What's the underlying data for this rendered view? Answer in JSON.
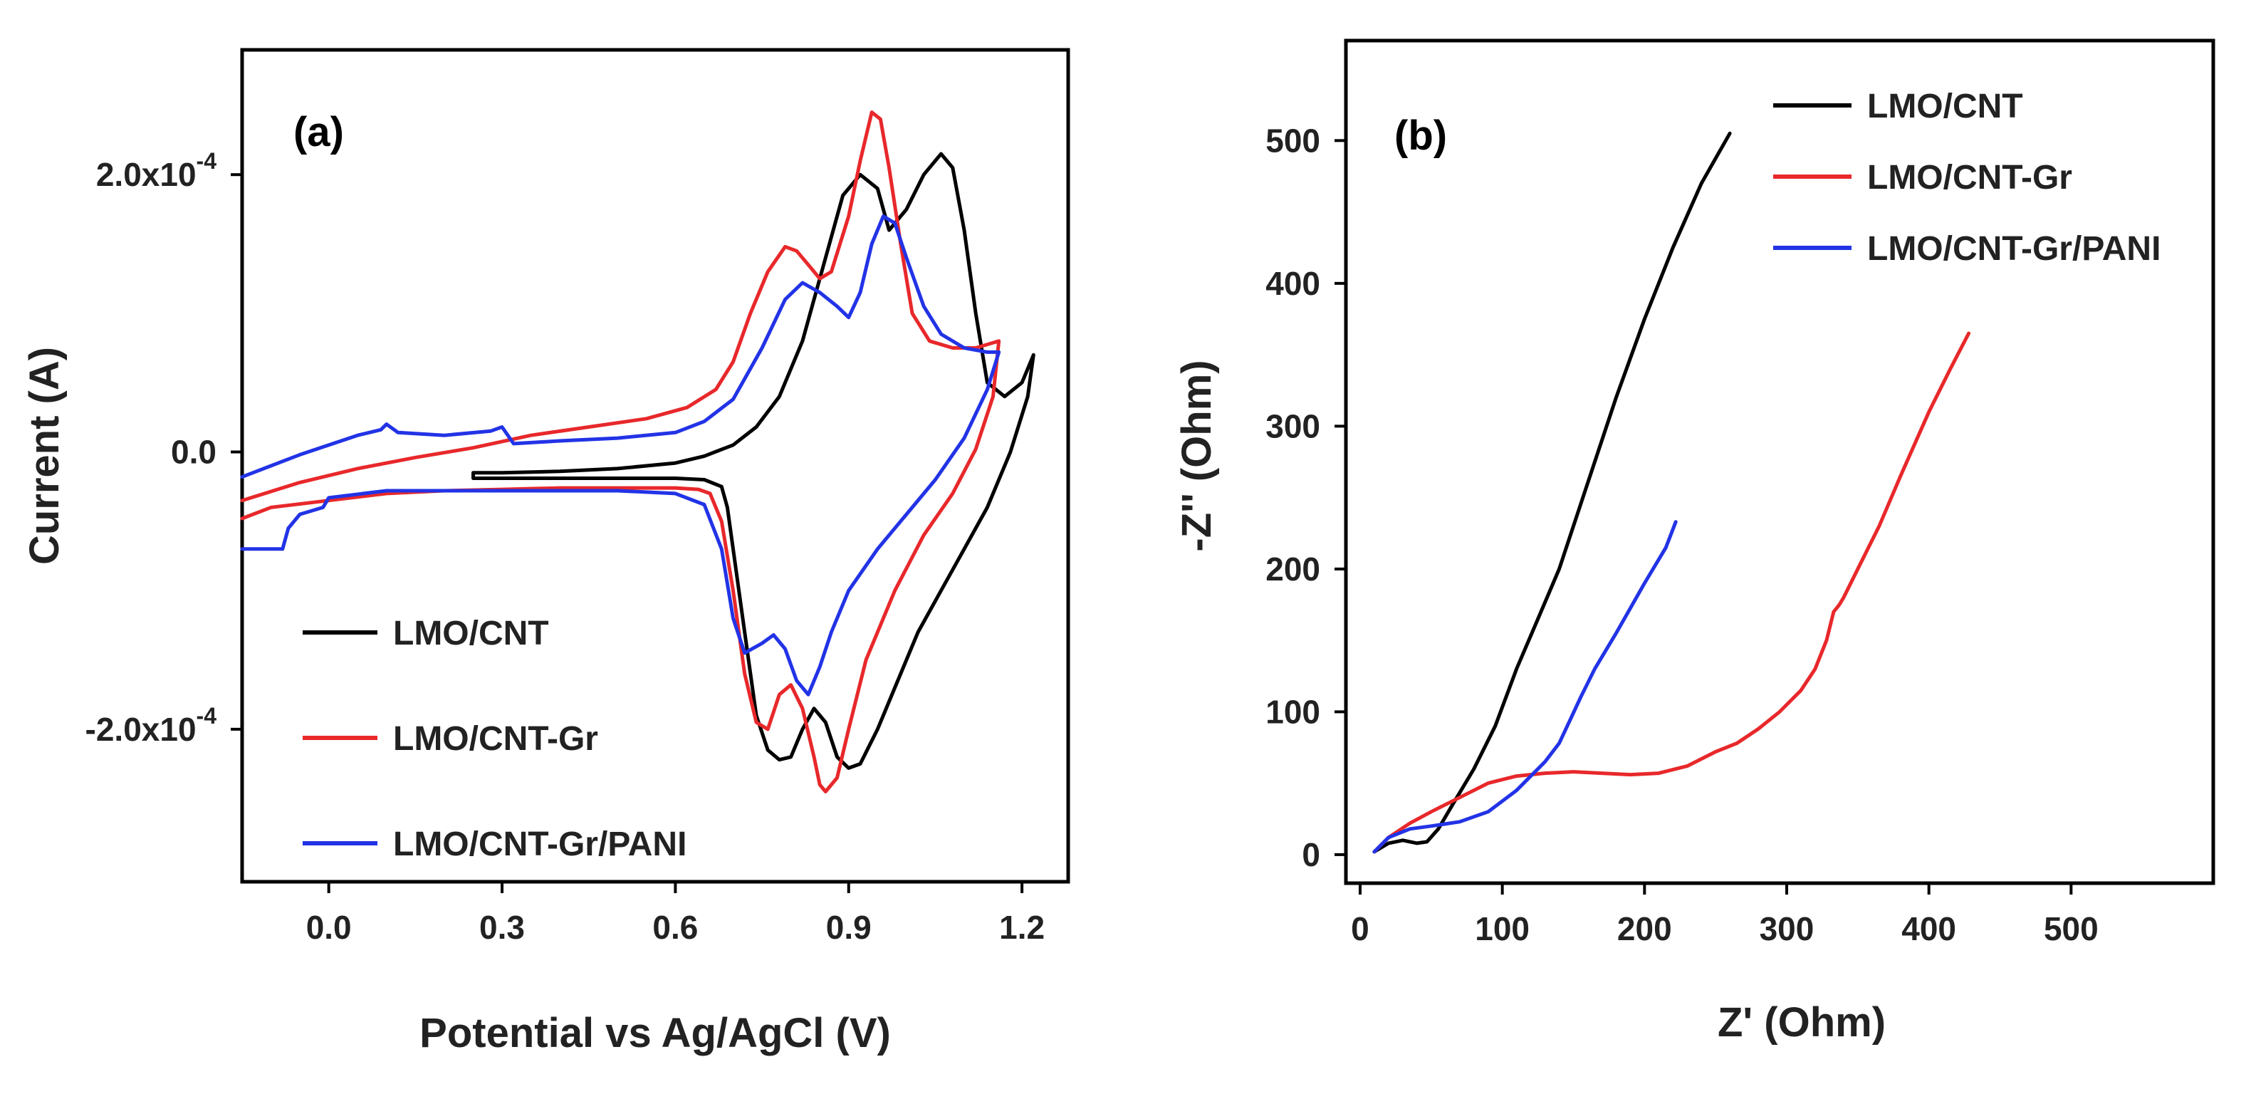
{
  "chart_data": [
    {
      "type": "line",
      "panel_label": "(a)",
      "xlabel": "Potential vs Ag/AgCl (V)",
      "ylabel": "Current (A)",
      "xlim": [
        -0.15,
        1.28
      ],
      "ylim": [
        -0.00031,
        0.00029
      ],
      "xticks": [
        0.0,
        0.3,
        0.6,
        0.9,
        1.2
      ],
      "xtick_labels": [
        "0.0",
        "0.3",
        "0.6",
        "0.9",
        "1.2"
      ],
      "yticks": [
        0.0002,
        0.0,
        -0.0002
      ],
      "ytick_labels": [
        {
          "mantissa": "2.0x10",
          "exponent": "-4"
        },
        {
          "mantissa": "0.0",
          "exponent": ""
        },
        {
          "mantissa": "-2.0x10",
          "exponent": "-4"
        }
      ],
      "legend_position": "lower-left",
      "series": [
        {
          "name": "LMO/CNT",
          "color": "#000000",
          "x": [
            0.25,
            0.3,
            0.4,
            0.5,
            0.6,
            0.65,
            0.7,
            0.74,
            0.78,
            0.82,
            0.86,
            0.89,
            0.92,
            0.95,
            0.97,
            1.0,
            1.03,
            1.06,
            1.08,
            1.1,
            1.12,
            1.14,
            1.17,
            1.2,
            1.22,
            1.21,
            1.18,
            1.14,
            1.1,
            1.06,
            1.02,
            0.98,
            0.95,
            0.92,
            0.9,
            0.88,
            0.86,
            0.84,
            0.82,
            0.8,
            0.78,
            0.76,
            0.74,
            0.72,
            0.7,
            0.69,
            0.68,
            0.65,
            0.6,
            0.5,
            0.4,
            0.3,
            0.25,
            0.25
          ],
          "y": [
            -1.5e-05,
            -1.5e-05,
            -1.4e-05,
            -1.2e-05,
            -8e-06,
            -3e-06,
            5e-06,
            1.8e-05,
            4e-05,
            8e-05,
            0.00014,
            0.000185,
            0.0002,
            0.00019,
            0.00016,
            0.000175,
            0.0002,
            0.000215,
            0.000205,
            0.00016,
            0.0001,
            5e-05,
            4e-05,
            5e-05,
            7e-05,
            4e-05,
            0.0,
            -4e-05,
            -7e-05,
            -0.0001,
            -0.00013,
            -0.00017,
            -0.0002,
            -0.000225,
            -0.000228,
            -0.00022,
            -0.000195,
            -0.000185,
            -0.0002,
            -0.00022,
            -0.000222,
            -0.000215,
            -0.00019,
            -0.00013,
            -7e-05,
            -4e-05,
            -2.5e-05,
            -2e-05,
            -1.9e-05,
            -1.9e-05,
            -1.9e-05,
            -1.9e-05,
            -1.9e-05,
            -1.5e-05
          ]
        },
        {
          "name": "LMO/CNT-Gr",
          "color": "#e8282b",
          "x": [
            -0.15,
            -0.05,
            0.05,
            0.15,
            0.25,
            0.35,
            0.45,
            0.55,
            0.62,
            0.67,
            0.7,
            0.73,
            0.76,
            0.79,
            0.81,
            0.83,
            0.85,
            0.87,
            0.9,
            0.92,
            0.94,
            0.955,
            0.97,
            0.99,
            1.01,
            1.04,
            1.08,
            1.12,
            1.16,
            1.15,
            1.12,
            1.08,
            1.03,
            0.98,
            0.93,
            0.9,
            0.88,
            0.86,
            0.85,
            0.84,
            0.82,
            0.8,
            0.78,
            0.76,
            0.74,
            0.72,
            0.7,
            0.68,
            0.66,
            0.64,
            0.6,
            0.5,
            0.4,
            0.3,
            0.2,
            0.1,
            0.0,
            -0.1,
            -0.15
          ],
          "y": [
            -3.5e-05,
            -2.2e-05,
            -1.2e-05,
            -4e-06,
            3e-06,
            1.2e-05,
            1.8e-05,
            2.4e-05,
            3.2e-05,
            4.5e-05,
            6.5e-05,
            0.0001,
            0.00013,
            0.000148,
            0.000145,
            0.000135,
            0.000125,
            0.00013,
            0.00017,
            0.00021,
            0.000245,
            0.00024,
            0.000205,
            0.00015,
            0.0001,
            8e-05,
            7.5e-05,
            7.5e-05,
            8e-05,
            4e-05,
            2e-06,
            -3e-05,
            -6e-05,
            -0.0001,
            -0.00015,
            -0.0002,
            -0.000235,
            -0.000245,
            -0.00024,
            -0.00022,
            -0.000185,
            -0.000168,
            -0.000175,
            -0.0002,
            -0.000195,
            -0.00016,
            -0.0001,
            -5e-05,
            -3e-05,
            -2.7e-05,
            -2.6e-05,
            -2.6e-05,
            -2.6e-05,
            -2.7e-05,
            -2.8e-05,
            -3e-05,
            -3.5e-05,
            -4e-05,
            -4.8e-05
          ]
        },
        {
          "name": "LMO/CNT-Gr/PANI",
          "color": "#2233e6",
          "x": [
            -0.15,
            -0.05,
            0.05,
            0.09,
            0.1,
            0.12,
            0.2,
            0.28,
            0.3,
            0.32,
            0.4,
            0.5,
            0.6,
            0.65,
            0.7,
            0.75,
            0.79,
            0.82,
            0.85,
            0.88,
            0.9,
            0.92,
            0.94,
            0.96,
            0.98,
            1.0,
            1.03,
            1.06,
            1.1,
            1.14,
            1.16,
            1.14,
            1.1,
            1.05,
            1.0,
            0.95,
            0.9,
            0.87,
            0.85,
            0.83,
            0.81,
            0.79,
            0.77,
            0.75,
            0.72,
            0.7,
            0.68,
            0.65,
            0.6,
            0.5,
            0.4,
            0.3,
            0.2,
            0.1,
            0.0,
            -0.01,
            -0.05,
            -0.07,
            -0.08,
            -0.1,
            -0.15
          ],
          "y": [
            -1.8e-05,
            -2e-06,
            1.2e-05,
            1.6e-05,
            2e-05,
            1.4e-05,
            1.2e-05,
            1.5e-05,
            1.8e-05,
            6e-06,
            8e-06,
            1e-05,
            1.4e-05,
            2.2e-05,
            3.8e-05,
            7.5e-05,
            0.00011,
            0.000122,
            0.000115,
            0.000105,
            9.7e-05,
            0.000115,
            0.00015,
            0.00017,
            0.000165,
            0.00014,
            0.000105,
            8.5e-05,
            7.5e-05,
            7.2e-05,
            7.2e-05,
            4.5e-05,
            1e-05,
            -2e-05,
            -4.5e-05,
            -7e-05,
            -0.0001,
            -0.00013,
            -0.000155,
            -0.000175,
            -0.000165,
            -0.000142,
            -0.000132,
            -0.000138,
            -0.000145,
            -0.00012,
            -7e-05,
            -3.8e-05,
            -3e-05,
            -2.8e-05,
            -2.8e-05,
            -2.8e-05,
            -2.8e-05,
            -2.8e-05,
            -3.3e-05,
            -4e-05,
            -4.5e-05,
            -5.5e-05,
            -7e-05,
            -7e-05,
            -7e-05
          ]
        }
      ]
    },
    {
      "type": "line",
      "panel_label": "(b)",
      "xlabel": "Z' (Ohm)",
      "ylabel": "-Z'' (Ohm)",
      "xlim": [
        -10,
        600
      ],
      "ylim": [
        -20,
        570
      ],
      "xticks": [
        0,
        100,
        200,
        300,
        400,
        500
      ],
      "xtick_labels": [
        "0",
        "100",
        "200",
        "300",
        "400",
        "500"
      ],
      "yticks": [
        0,
        100,
        200,
        300,
        400,
        500
      ],
      "ytick_labels": [
        "0",
        "100",
        "200",
        "300",
        "400",
        "500"
      ],
      "legend_position": "top-right",
      "series": [
        {
          "name": "LMO/CNT",
          "color": "#000000",
          "x": [
            10,
            20,
            30,
            40,
            47,
            55,
            65,
            80,
            95,
            110,
            125,
            140,
            160,
            180,
            200,
            220,
            240,
            260
          ],
          "y": [
            2,
            8,
            10,
            8,
            9,
            18,
            35,
            60,
            90,
            130,
            165,
            200,
            260,
            320,
            375,
            425,
            470,
            505
          ]
        },
        {
          "name": "LMO/CNT-Gr",
          "color": "#e8282b",
          "x": [
            10,
            20,
            35,
            50,
            70,
            90,
            110,
            130,
            150,
            170,
            190,
            210,
            230,
            250,
            265,
            280,
            295,
            310,
            320,
            328,
            333,
            337,
            340,
            350,
            365,
            380,
            400,
            415,
            428
          ],
          "y": [
            2,
            12,
            22,
            30,
            40,
            50,
            55,
            57,
            58,
            57,
            56,
            57,
            62,
            72,
            78,
            88,
            100,
            115,
            130,
            150,
            170,
            175,
            180,
            200,
            230,
            265,
            310,
            340,
            365
          ]
        },
        {
          "name": "LMO/CNT-Gr/PANI",
          "color": "#2233e6",
          "x": [
            10,
            20,
            35,
            50,
            70,
            90,
            110,
            130,
            140,
            148,
            155,
            165,
            180,
            200,
            215,
            222
          ],
          "y": [
            2,
            12,
            18,
            20,
            23,
            30,
            45,
            65,
            78,
            95,
            110,
            130,
            155,
            190,
            215,
            233
          ]
        }
      ]
    }
  ]
}
